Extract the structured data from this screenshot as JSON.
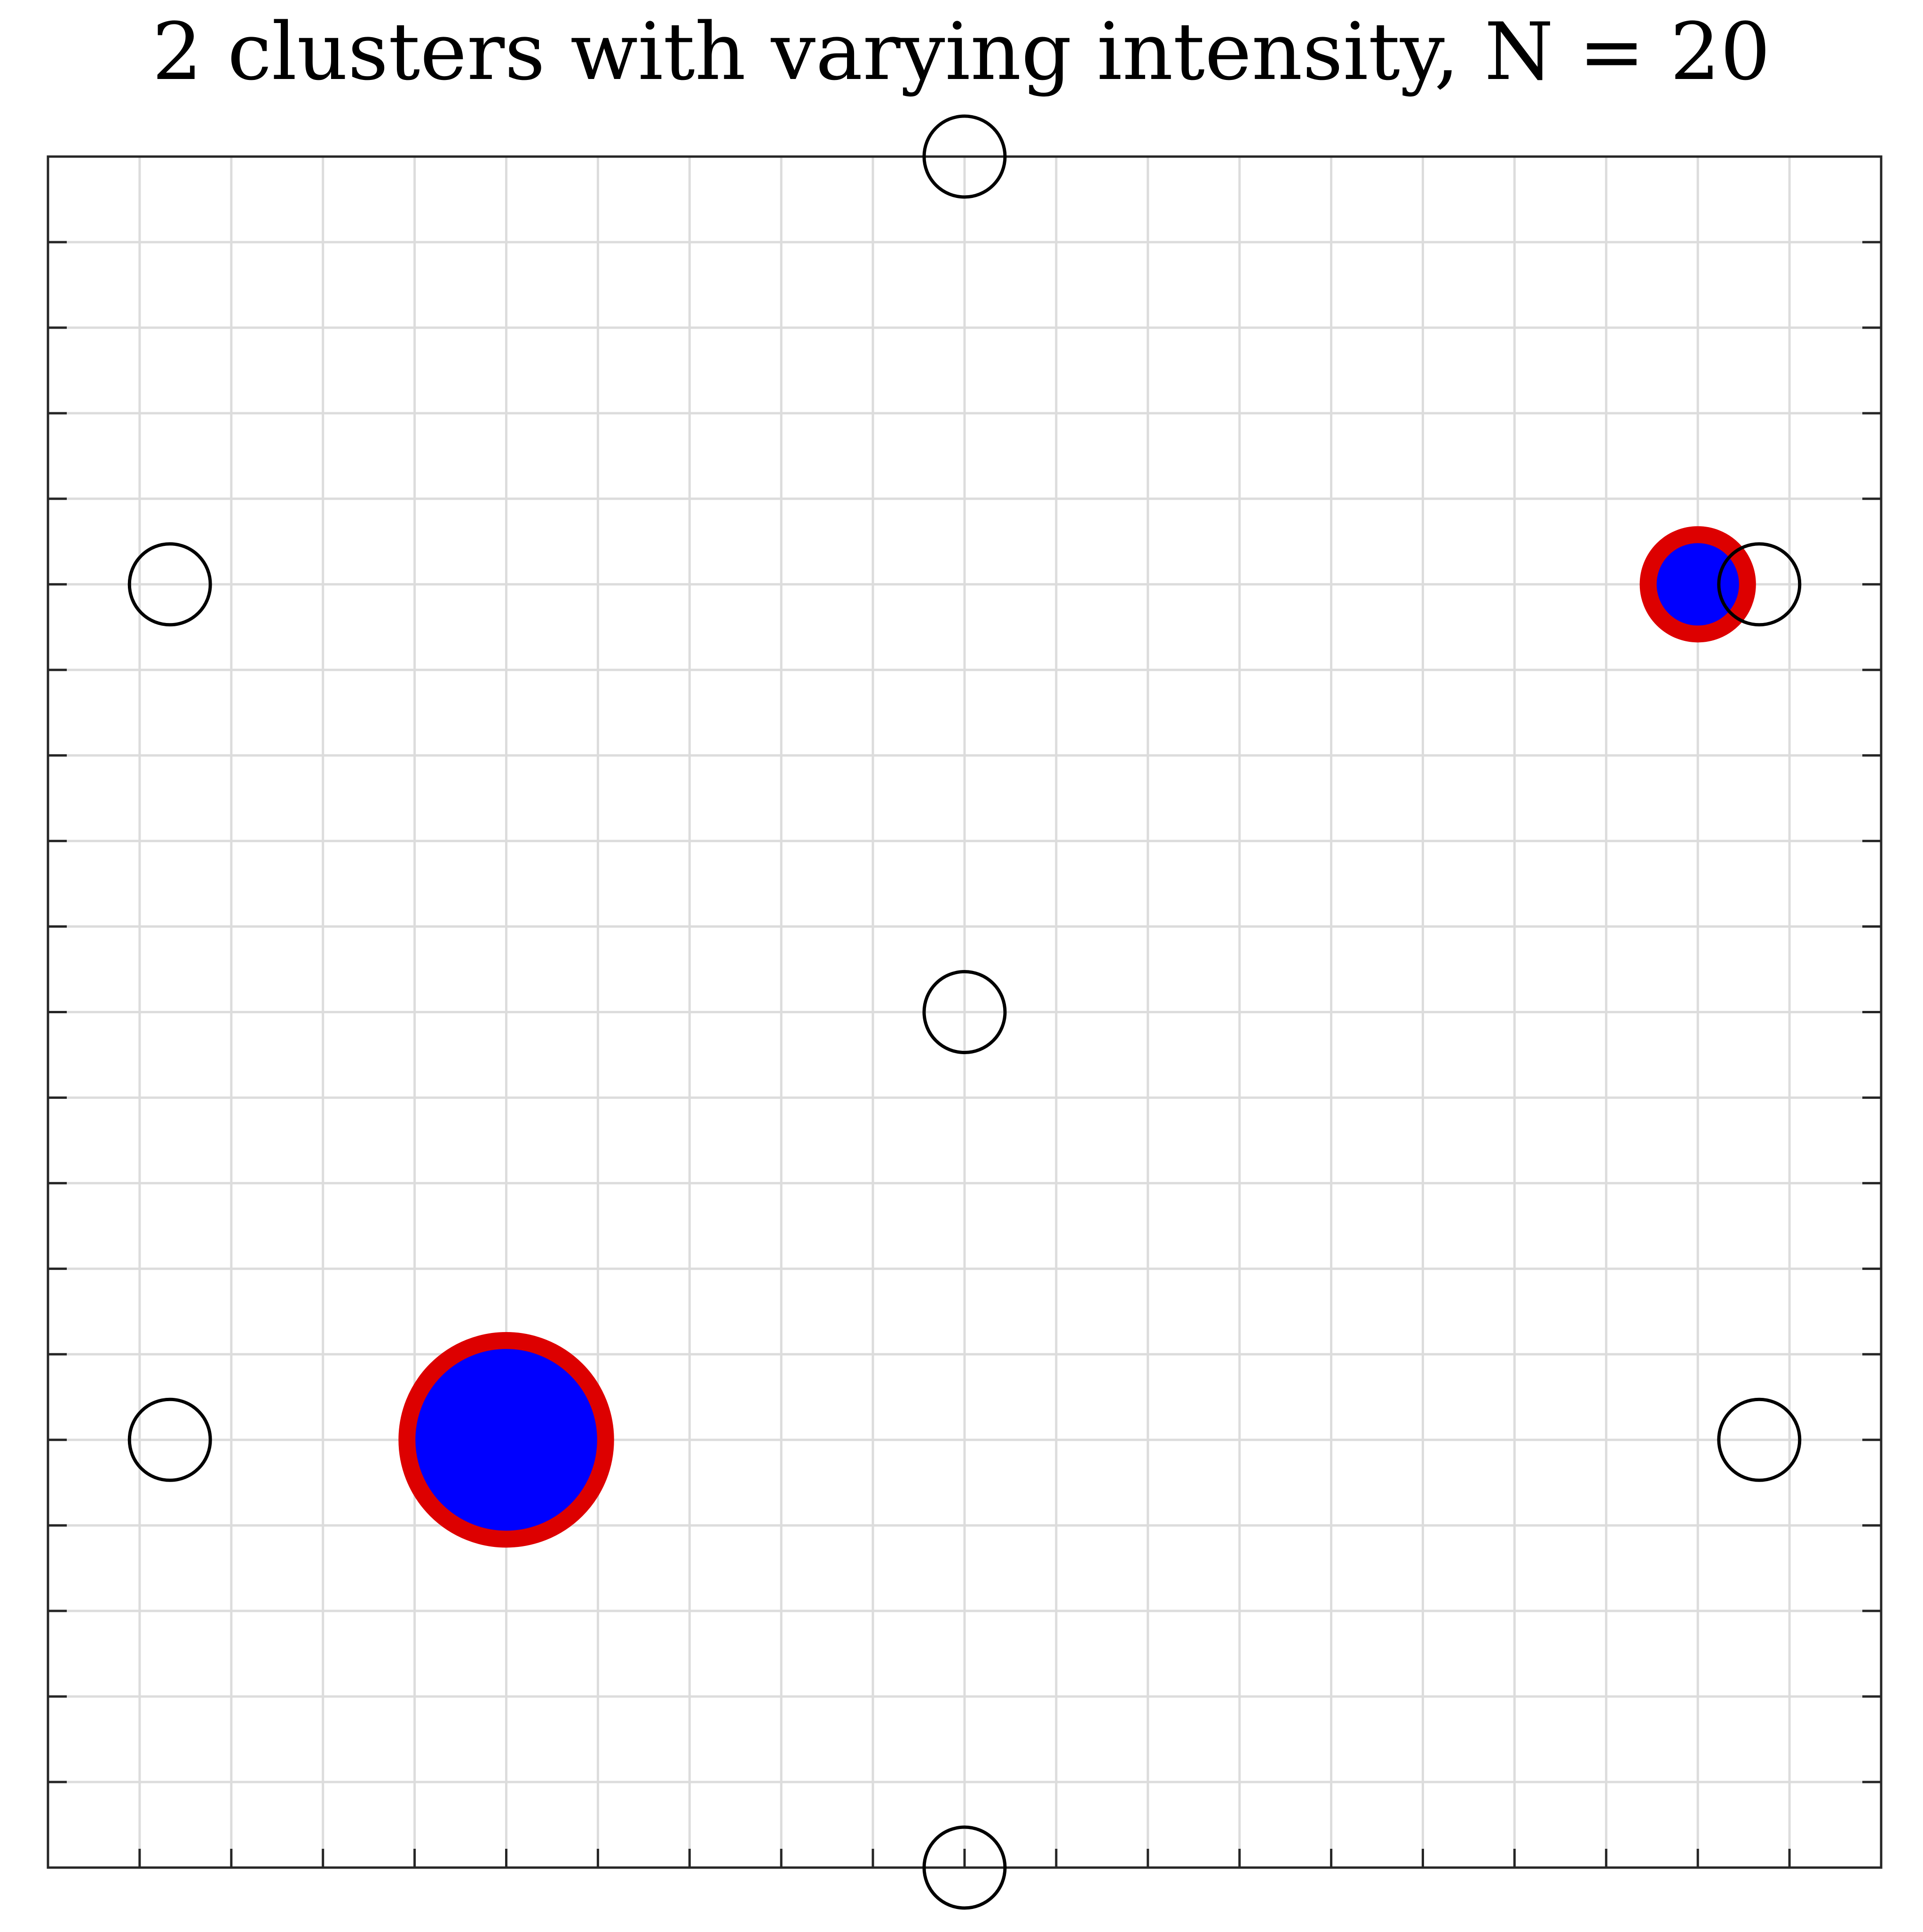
{
  "chart_data": {
    "type": "scatter",
    "title": "2 clusters with varying intensity, N = 20",
    "xlabel": "",
    "ylabel": "",
    "xlim": [
      0,
      20
    ],
    "ylim": [
      0,
      20
    ],
    "x_ticks": [
      0,
      1,
      2,
      3,
      4,
      5,
      6,
      7,
      8,
      9,
      10,
      11,
      12,
      13,
      14,
      15,
      16,
      17,
      18,
      19,
      20
    ],
    "y_ticks": [
      0,
      1,
      2,
      3,
      4,
      5,
      6,
      7,
      8,
      9,
      10,
      11,
      12,
      13,
      14,
      15,
      16,
      17,
      18,
      19,
      20
    ],
    "tick_labels_visible": false,
    "grid": true,
    "colors": {
      "grid": "#dcdcdc",
      "axes": "#262626",
      "sensor_ring": "#000000",
      "cluster_fill": "#0000ff",
      "cluster_edge": "#dd0000"
    },
    "series": [
      {
        "name": "sensors",
        "marker": "open-circle",
        "points": [
          {
            "x": 10,
            "y": 20
          },
          {
            "x": 1.33,
            "y": 15
          },
          {
            "x": 18.67,
            "y": 15
          },
          {
            "x": 10,
            "y": 10
          },
          {
            "x": 1.33,
            "y": 5
          },
          {
            "x": 18.67,
            "y": 5
          },
          {
            "x": 10,
            "y": 0
          }
        ]
      },
      {
        "name": "clusters",
        "marker": "filled-circle",
        "points": [
          {
            "x": 5,
            "y": 5,
            "intensity": 2.2
          },
          {
            "x": 18,
            "y": 15,
            "intensity": 1.1
          }
        ]
      }
    ]
  }
}
